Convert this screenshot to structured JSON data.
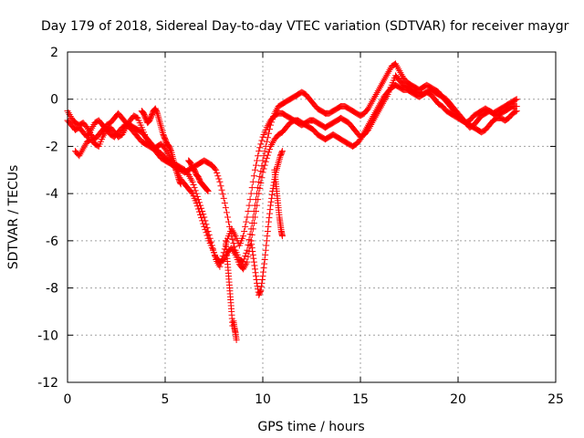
{
  "chart_data": {
    "type": "scatter",
    "title": "Day 179 of 2018, Sidereal Day-to-day VTEC variation (SDTVAR) for receiver maygr",
    "xlabel": "GPS time / hours",
    "ylabel": "SDTVAR / TECUs",
    "xlim": [
      0,
      25
    ],
    "ylim": [
      -12,
      2
    ],
    "xticks": [
      0,
      5,
      10,
      15,
      20,
      25
    ],
    "xtick_labels": [
      "0",
      "5",
      "10",
      "15",
      "20",
      "25"
    ],
    "yticks": [
      -12,
      -10,
      -8,
      -6,
      -4,
      -2,
      0,
      2
    ],
    "ytick_labels": [
      "-12",
      "-10",
      "-8",
      "-6",
      "-4",
      "-2",
      "0",
      "2"
    ],
    "grid": true,
    "marker": "+",
    "series": [
      {
        "name": "SDTVAR",
        "color": "#ff0000",
        "tracks": [
          {
            "x": [
              0.0,
              0.2,
              0.4,
              0.6,
              0.8,
              1.0,
              1.2,
              1.4,
              1.6,
              1.8,
              2.0,
              2.2,
              2.4,
              2.6,
              2.8,
              3.0,
              3.2,
              3.4,
              3.6,
              3.8,
              4.0,
              4.2,
              4.4,
              4.6,
              4.8,
              5.0,
              5.2,
              5.4,
              5.6,
              5.8,
              6.0,
              6.2,
              6.4,
              6.6,
              6.8,
              7.0,
              7.2,
              7.4,
              7.6,
              7.8,
              8.0,
              8.2,
              8.4,
              8.6,
              8.8,
              9.0,
              9.2,
              9.4,
              9.6,
              9.8,
              10.0,
              10.2,
              10.4,
              10.6,
              10.8,
              11.0,
              11.2,
              11.4,
              11.6,
              11.8,
              12.0,
              12.2,
              12.4,
              12.6,
              12.8,
              13.0,
              13.2,
              13.4,
              13.6,
              13.8,
              14.0,
              14.2,
              14.4,
              14.6,
              14.8,
              15.0,
              15.2,
              15.4,
              15.6,
              15.8,
              16.0,
              16.2,
              16.4,
              16.6,
              16.8,
              17.0,
              17.2,
              17.4,
              17.6,
              17.8,
              18.0,
              18.2,
              18.4,
              18.6,
              18.8,
              19.0,
              19.2,
              19.4,
              19.6,
              19.8,
              20.0,
              20.2,
              20.4,
              20.6,
              20.8,
              21.0,
              21.2,
              21.4,
              21.6,
              21.8,
              22.0,
              22.2,
              22.4,
              22.6,
              22.8,
              23.0
            ],
            "y": [
              -0.5,
              -0.8,
              -1.0,
              -1.1,
              -1.0,
              -1.2,
              -1.5,
              -1.7,
              -1.5,
              -1.3,
              -1.1,
              -1.0,
              -0.8,
              -0.6,
              -0.8,
              -1.0,
              -1.1,
              -1.2,
              -1.3,
              -1.4,
              -1.6,
              -1.8,
              -2.0,
              -2.2,
              -2.3,
              -2.5,
              -2.6,
              -2.7,
              -2.8,
              -2.9,
              -3.0,
              -3.2,
              -3.5,
              -4.0,
              -4.5,
              -5.0,
              -5.6,
              -6.2,
              -6.8,
              -7.1,
              -6.5,
              -5.9,
              -5.5,
              -5.8,
              -6.2,
              -5.8,
              -5.0,
              -4.0,
              -3.0,
              -2.2,
              -1.6,
              -1.2,
              -0.9,
              -0.7,
              -0.6,
              -0.6,
              -0.7,
              -0.8,
              -0.9,
              -1.0,
              -1.1,
              -1.0,
              -0.9,
              -0.9,
              -1.0,
              -1.1,
              -1.2,
              -1.1,
              -1.0,
              -0.9,
              -0.8,
              -0.9,
              -1.0,
              -1.2,
              -1.4,
              -1.6,
              -1.5,
              -1.3,
              -1.0,
              -0.7,
              -0.4,
              -0.1,
              0.2,
              0.6,
              1.0,
              0.8,
              0.6,
              0.5,
              0.4,
              0.3,
              0.3,
              0.2,
              0.3,
              0.4,
              0.3,
              0.2,
              0.1,
              0.0,
              -0.2,
              -0.4,
              -0.6,
              -0.8,
              -1.0,
              -1.2,
              -1.1,
              -0.9,
              -0.7,
              -0.6,
              -0.5,
              -0.6,
              -0.7,
              -0.6,
              -0.5,
              -0.4,
              -0.3,
              -0.3
            ]
          },
          {
            "x": [
              0.4,
              0.6,
              0.8,
              1.0,
              1.2,
              1.4,
              1.6,
              1.8,
              2.0,
              2.2,
              2.4,
              2.6,
              2.8,
              3.0,
              3.2,
              3.4,
              3.6,
              3.8,
              4.0,
              4.2,
              4.4,
              4.6,
              4.8,
              5.0,
              5.2,
              5.4,
              5.6,
              5.8,
              6.0,
              6.2,
              6.4,
              6.6,
              6.8,
              7.0,
              7.2,
              7.4,
              7.6,
              7.8,
              8.0,
              8.2,
              8.4,
              8.6,
              8.8,
              9.0,
              9.2,
              9.4,
              9.6,
              9.8,
              10.0,
              10.2,
              10.4,
              10.6,
              10.8,
              11.0,
              11.2,
              11.4,
              11.6,
              11.8,
              12.0,
              12.2,
              12.4,
              12.6,
              12.8,
              13.0,
              13.2,
              13.4,
              13.6,
              13.8,
              14.0,
              14.2,
              14.4,
              14.6,
              14.8,
              15.0,
              15.2,
              15.4,
              15.6,
              15.8,
              16.0,
              16.2,
              16.4,
              16.6,
              16.8,
              17.0,
              17.2,
              17.4,
              17.6,
              17.8,
              18.0,
              18.2,
              18.4,
              18.6,
              18.8,
              19.0,
              19.2,
              19.4,
              19.6,
              19.8,
              20.0,
              20.2,
              20.4,
              20.6,
              20.8,
              21.0,
              21.2,
              21.4,
              21.6,
              21.8,
              22.0,
              22.2,
              22.4,
              22.6,
              22.8,
              23.0
            ],
            "y": [
              -2.2,
              -2.4,
              -2.1,
              -1.8,
              -1.7,
              -1.9,
              -2.0,
              -1.6,
              -1.3,
              -1.2,
              -1.4,
              -1.6,
              -1.5,
              -1.2,
              -0.9,
              -0.7,
              -0.8,
              -1.2,
              -1.6,
              -1.9,
              -2.1,
              -2.0,
              -1.9,
              -2.1,
              -2.4,
              -2.7,
              -3.1,
              -3.4,
              -3.6,
              -3.8,
              -4.0,
              -4.4,
              -4.9,
              -5.4,
              -5.9,
              -6.3,
              -6.7,
              -6.9,
              -6.8,
              -6.5,
              -6.3,
              -6.6,
              -7.0,
              -7.2,
              -6.9,
              -6.0,
              -5.0,
              -4.0,
              -3.1,
              -2.5,
              -2.0,
              -1.7,
              -1.5,
              -1.4,
              -1.2,
              -1.0,
              -0.9,
              -0.9,
              -1.0,
              -1.1,
              -1.2,
              -1.3,
              -1.5,
              -1.6,
              -1.7,
              -1.6,
              -1.5,
              -1.6,
              -1.7,
              -1.8,
              -1.9,
              -2.0,
              -1.9,
              -1.7,
              -1.4,
              -1.1,
              -0.8,
              -0.5,
              -0.2,
              0.1,
              0.3,
              0.5,
              0.6,
              0.5,
              0.4,
              0.4,
              0.3,
              0.2,
              0.1,
              0.2,
              0.3,
              0.2,
              0.0,
              -0.2,
              -0.3,
              -0.5,
              -0.6,
              -0.7,
              -0.8,
              -0.9,
              -1.0,
              -1.1,
              -1.2,
              -1.3,
              -1.4,
              -1.3,
              -1.1,
              -0.9,
              -0.8,
              -0.8,
              -0.9,
              -0.8,
              -0.6,
              -0.5
            ]
          },
          {
            "x": [
              0.0,
              0.2,
              0.4,
              0.6,
              0.8,
              1.0,
              1.2,
              1.4,
              1.6,
              1.8,
              2.0,
              2.2,
              2.4,
              2.6,
              2.8,
              3.0,
              3.2,
              3.4,
              3.6,
              3.8,
              4.0,
              4.2,
              4.4,
              4.6,
              4.8,
              5.0,
              5.2,
              5.4,
              5.6,
              5.8,
              6.0,
              6.2,
              6.4,
              6.6,
              6.8,
              7.0,
              7.2,
              7.4,
              7.6,
              7.8,
              8.0,
              8.2,
              8.4,
              8.6,
              8.8,
              9.0,
              9.2,
              9.4,
              9.6,
              9.8,
              10.0,
              10.2,
              10.4,
              10.6,
              10.8,
              11.0,
              11.2,
              11.4,
              11.6,
              11.8,
              12.0,
              12.2,
              12.4,
              12.6,
              12.8,
              13.0,
              13.2,
              13.4,
              13.6,
              13.8,
              14.0,
              14.2,
              14.4,
              14.6,
              14.8,
              15.0,
              15.2,
              15.4,
              15.6,
              15.8,
              16.0,
              16.2,
              16.4,
              16.6,
              16.8,
              17.0,
              17.2,
              17.4,
              17.6,
              17.8,
              18.0,
              18.2,
              18.4,
              18.6,
              18.8,
              19.0,
              19.2,
              19.4,
              19.6,
              19.8,
              20.0,
              20.2,
              20.4,
              20.6,
              20.8,
              21.0,
              21.2,
              21.4,
              21.6,
              21.8,
              22.0,
              22.2,
              22.4,
              22.6,
              22.8,
              23.0
            ],
            "y": [
              -0.9,
              -1.1,
              -1.3,
              -1.2,
              -1.4,
              -1.6,
              -1.3,
              -1.0,
              -0.9,
              -1.1,
              -1.3,
              -1.5,
              -1.6,
              -1.4,
              -1.2,
              -1.1,
              -1.2,
              -1.4,
              -1.6,
              -1.8,
              -1.9,
              -2.0,
              -2.1,
              -2.3,
              -2.5,
              -2.6,
              -2.7,
              -2.8,
              -2.9,
              -3.0,
              -3.1,
              -3.0,
              -2.9,
              -2.8,
              -2.7,
              -2.6,
              -2.7,
              -2.8,
              -3.0,
              -3.5,
              -4.2,
              -5.0,
              -5.8,
              -6.4,
              -6.8,
              -6.9,
              -6.4,
              -5.5,
              -4.5,
              -3.5,
              -2.6,
              -1.8,
              -1.1,
              -0.6,
              -0.3,
              -0.2,
              -0.1,
              0.0,
              0.1,
              0.2,
              0.3,
              0.2,
              0.0,
              -0.2,
              -0.4,
              -0.5,
              -0.6,
              -0.6,
              -0.5,
              -0.4,
              -0.3,
              -0.3,
              -0.4,
              -0.5,
              -0.6,
              -0.7,
              -0.6,
              -0.4,
              -0.1,
              0.2,
              0.5,
              0.8,
              1.1,
              1.4,
              1.5,
              1.2,
              0.9,
              0.7,
              0.6,
              0.5,
              0.4,
              0.5,
              0.6,
              0.5,
              0.4,
              0.3,
              0.1,
              -0.1,
              -0.3,
              -0.5,
              -0.7,
              -0.9,
              -1.0,
              -0.9,
              -0.7,
              -0.6,
              -0.5,
              -0.4,
              -0.5,
              -0.6,
              -0.5,
              -0.4,
              -0.3,
              -0.2,
              -0.1,
              0.0
            ]
          },
          {
            "x": [
              3.8,
              3.9,
              4.0,
              4.1,
              4.2,
              4.3,
              4.4,
              4.5,
              4.6,
              4.7,
              4.8,
              4.9,
              5.0,
              5.1,
              5.2,
              5.3,
              5.4,
              5.5,
              5.6,
              5.7,
              5.8
            ],
            "y": [
              -0.5,
              -0.6,
              -0.8,
              -1.0,
              -0.9,
              -0.7,
              -0.5,
              -0.4,
              -0.6,
              -0.9,
              -1.2,
              -1.5,
              -1.7,
              -1.9,
              -2.0,
              -2.2,
              -2.5,
              -2.8,
              -3.1,
              -3.4,
              -3.6
            ]
          },
          {
            "x": [
              6.2,
              6.3,
              6.4,
              6.5,
              6.6,
              6.7,
              6.8,
              6.9,
              7.0,
              7.1,
              7.2
            ],
            "y": [
              -2.6,
              -2.7,
              -2.9,
              -3.0,
              -3.2,
              -3.3,
              -3.5,
              -3.6,
              -3.7,
              -3.8,
              -3.9
            ]
          },
          {
            "x": [
              8.1,
              8.15,
              8.2,
              8.25,
              8.3,
              8.35,
              8.4,
              8.45
            ],
            "y": [
              -6.0,
              -6.5,
              -7.0,
              -7.5,
              -8.0,
              -8.5,
              -9.0,
              -9.6
            ]
          },
          {
            "x": [
              8.5,
              8.55,
              8.6,
              8.65
            ],
            "y": [
              -9.4,
              -9.7,
              -9.9,
              -10.2
            ]
          },
          {
            "x": [
              9.4,
              9.5,
              9.6,
              9.7,
              9.8,
              9.9,
              10.0,
              10.1,
              10.2,
              10.3,
              10.4,
              10.5,
              10.6,
              10.7,
              10.8,
              10.9,
              11.0
            ],
            "y": [
              -6.0,
              -6.6,
              -7.2,
              -7.8,
              -8.3,
              -8.1,
              -7.5,
              -6.8,
              -6.0,
              -5.2,
              -4.5,
              -3.9,
              -3.4,
              -3.0,
              -2.7,
              -2.4,
              -2.2
            ]
          },
          {
            "x": [
              10.6,
              10.65,
              10.7,
              10.75,
              10.8,
              10.85,
              10.9,
              10.95,
              11.0
            ],
            "y": [
              -3.0,
              -3.4,
              -3.8,
              -4.2,
              -4.6,
              -5.0,
              -5.3,
              -5.6,
              -5.8
            ]
          }
        ]
      }
    ]
  }
}
